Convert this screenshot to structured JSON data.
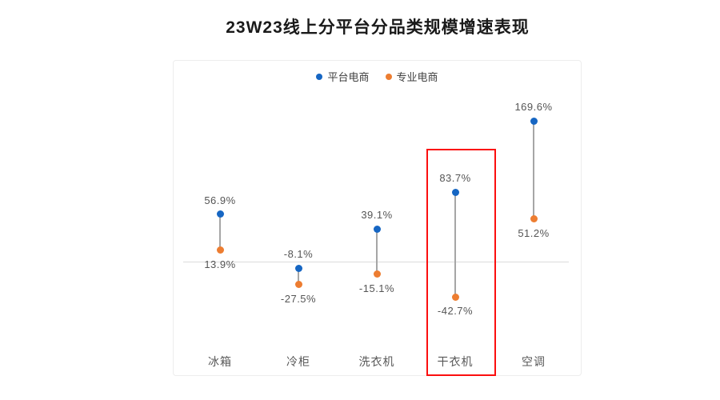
{
  "title": "23W23线上分平台分品类规模增速表现",
  "legend": {
    "items": [
      {
        "label": "平台电商",
        "color": "#1666c3"
      },
      {
        "label": "专业电商",
        "color": "#ed7d31"
      }
    ]
  },
  "chart_data": {
    "type": "scatter",
    "variant": "dumbbell",
    "title": "23W23线上分平台分品类规模增速表现",
    "categories": [
      "冰箱",
      "冷柜",
      "洗衣机",
      "干衣机",
      "空调"
    ],
    "series": [
      {
        "name": "平台电商",
        "color": "#1666c3",
        "values": [
          56.9,
          -8.1,
          39.1,
          83.7,
          169.6
        ],
        "labels": [
          "56.9%",
          "-8.1%",
          "39.1%",
          "83.7%",
          "169.6%"
        ],
        "label_position": "above"
      },
      {
        "name": "专业电商",
        "color": "#ed7d31",
        "values": [
          13.9,
          -27.5,
          -15.1,
          -42.7,
          51.2
        ],
        "labels": [
          "13.9%",
          "-27.5%",
          "-15.1%",
          "-42.7%",
          "51.2%"
        ],
        "label_position": "below"
      }
    ],
    "xlabel": "",
    "ylabel": "",
    "ylim": [
      -139,
      242
    ],
    "gridlines": "zero-baseline-only",
    "legend_position": "top-center",
    "annotation": {
      "type": "highlight-box",
      "category": "干衣机",
      "color": "#fb0e0e"
    }
  },
  "colors": {
    "connector": "#a6a6a6",
    "baseline": "#dcdcdc",
    "plot_border": "#ededed",
    "value_label": "#555555",
    "category_label": "#595959"
  }
}
